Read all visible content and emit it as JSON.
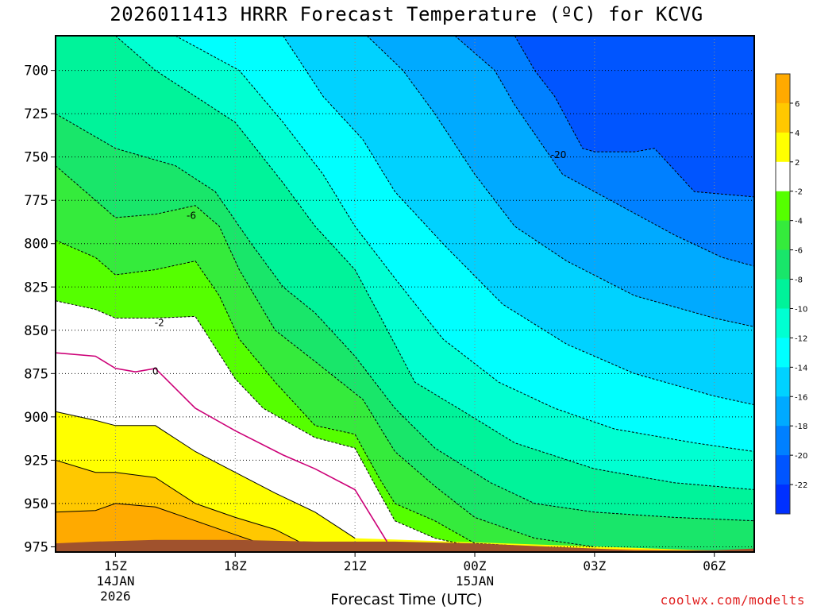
{
  "chart_data": {
    "type": "contour",
    "title": "2026011413 HRRR Forecast Temperature (ºC) for KCVG",
    "xlabel": "Forecast Time (UTC)",
    "credit": "coolwx.com/modelts",
    "y_axis": {
      "quantity": "pressure (hPa)",
      "reversed": true,
      "range": [
        680,
        978
      ],
      "ticks": [
        "700",
        "725",
        "750",
        "775",
        "800",
        "825",
        "850",
        "875",
        "900",
        "925",
        "950",
        "975"
      ]
    },
    "x_axis": {
      "range_hours": [
        13.5,
        31
      ],
      "ticks": [
        {
          "hour": 15,
          "lines": [
            "15Z",
            "14JAN",
            "2026"
          ]
        },
        {
          "hour": 18,
          "lines": [
            "18Z"
          ]
        },
        {
          "hour": 21,
          "lines": [
            "21Z"
          ]
        },
        {
          "hour": 24,
          "lines": [
            "00Z",
            "15JAN"
          ]
        },
        {
          "hour": 27,
          "lines": [
            "03Z"
          ]
        },
        {
          "hour": 30,
          "lines": [
            "06Z"
          ]
        }
      ]
    },
    "grid": true,
    "contour_levels": [
      -22,
      -20,
      -18,
      -16,
      -14,
      -12,
      -10,
      -8,
      -6,
      -4,
      -2,
      0,
      2,
      4,
      6
    ],
    "colorbar": {
      "position": "right",
      "ticks": [
        "6",
        "4",
        "2",
        "-2",
        "-4",
        "-6",
        "-8",
        "-10",
        "-12",
        "-14",
        "-16",
        "-18",
        "-20",
        "-22"
      ],
      "bands": [
        {
          "range": [
            6,
            8
          ],
          "color": "#ffaa00"
        },
        {
          "range": [
            4,
            6
          ],
          "color": "#ffc800"
        },
        {
          "range": [
            2,
            4
          ],
          "color": "#ffff00"
        },
        {
          "range": [
            -2,
            2
          ],
          "color": "#ffffff"
        },
        {
          "range": [
            -4,
            -2
          ],
          "color": "#55ff00"
        },
        {
          "range": [
            -6,
            -4
          ],
          "color": "#35eb3c"
        },
        {
          "range": [
            -8,
            -6
          ],
          "color": "#19e66a"
        },
        {
          "range": [
            -10,
            -8
          ],
          "color": "#00f39a"
        },
        {
          "range": [
            -12,
            -10
          ],
          "color": "#00ffd2"
        },
        {
          "range": [
            -14,
            -12
          ],
          "color": "#00ffff"
        },
        {
          "range": [
            -16,
            -14
          ],
          "color": "#00d2ff"
        },
        {
          "range": [
            -18,
            -16
          ],
          "color": "#00aaff"
        },
        {
          "range": [
            -20,
            -18
          ],
          "color": "#0080ff"
        },
        {
          "range": [
            -22,
            -20
          ],
          "color": "#0055ff"
        },
        {
          "range": [
            -24,
            -22
          ],
          "color": "#0030ff"
        }
      ]
    },
    "contour_labels": [
      {
        "text": "-20",
        "hour": 26.1,
        "pressure": 749
      },
      {
        "text": "-6",
        "hour": 16.9,
        "pressure": 784
      },
      {
        "text": "-2",
        "hour": 16.1,
        "pressure": 846
      },
      {
        "text": "0",
        "hour": 16.0,
        "pressure": 874
      }
    ],
    "isotherms": [
      {
        "level": -20,
        "points": [
          [
            25.0,
            680
          ],
          [
            25.5,
            700
          ],
          [
            26.0,
            715
          ],
          [
            26.7,
            745
          ],
          [
            27.0,
            747
          ],
          [
            28.0,
            747
          ],
          [
            28.5,
            745
          ],
          [
            29.5,
            770
          ],
          [
            31.0,
            773
          ]
        ]
      },
      {
        "level": -18,
        "points": [
          [
            23.5,
            680
          ],
          [
            24.5,
            700
          ],
          [
            25.0,
            720
          ],
          [
            26.2,
            760
          ],
          [
            27.8,
            780
          ],
          [
            29.0,
            795
          ],
          [
            30.2,
            808
          ],
          [
            31.0,
            813
          ]
        ]
      },
      {
        "level": -16,
        "points": [
          [
            21.3,
            680
          ],
          [
            22.2,
            700
          ],
          [
            23.0,
            725
          ],
          [
            24.0,
            760
          ],
          [
            25.0,
            790
          ],
          [
            26.3,
            810
          ],
          [
            28.0,
            830
          ],
          [
            30.0,
            843
          ],
          [
            31.0,
            848
          ]
        ]
      },
      {
        "level": -14,
        "points": [
          [
            19.2,
            680
          ],
          [
            20.2,
            715
          ],
          [
            21.2,
            740
          ],
          [
            22.0,
            770
          ],
          [
            23.2,
            800
          ],
          [
            24.7,
            835
          ],
          [
            26.3,
            858
          ],
          [
            28.0,
            875
          ],
          [
            30.0,
            888
          ],
          [
            31.0,
            893
          ]
        ]
      },
      {
        "level": -12,
        "points": [
          [
            16.5,
            680
          ],
          [
            18.1,
            700
          ],
          [
            19.2,
            730
          ],
          [
            20.2,
            760
          ],
          [
            21.0,
            790
          ],
          [
            22.0,
            820
          ],
          [
            23.2,
            855
          ],
          [
            24.6,
            880
          ],
          [
            26.0,
            895
          ],
          [
            27.5,
            907
          ],
          [
            29.5,
            915
          ],
          [
            31.0,
            920
          ]
        ]
      },
      {
        "level": -10,
        "points": [
          [
            15.0,
            680
          ],
          [
            16.0,
            700
          ],
          [
            18.0,
            730
          ],
          [
            19.2,
            765
          ],
          [
            20.0,
            790
          ],
          [
            21.0,
            815
          ],
          [
            21.7,
            845
          ],
          [
            22.5,
            880
          ],
          [
            23.8,
            898
          ],
          [
            25.0,
            915
          ],
          [
            27.0,
            930
          ],
          [
            29.0,
            938
          ],
          [
            31.0,
            942
          ]
        ]
      },
      {
        "level": -8,
        "points": [
          [
            13.5,
            725
          ],
          [
            15.0,
            745
          ],
          [
            16.5,
            755
          ],
          [
            17.5,
            770
          ],
          [
            18.4,
            800
          ],
          [
            19.2,
            825
          ],
          [
            20.0,
            840
          ],
          [
            21.0,
            865
          ],
          [
            22.0,
            895
          ],
          [
            23.0,
            918
          ],
          [
            24.4,
            938
          ],
          [
            25.5,
            950
          ],
          [
            27.0,
            955
          ],
          [
            29.0,
            958
          ],
          [
            31.0,
            960
          ]
        ]
      },
      {
        "level": -6,
        "points": [
          [
            13.5,
            755
          ],
          [
            14.5,
            775
          ],
          [
            15.0,
            785
          ],
          [
            16.0,
            783
          ],
          [
            17.0,
            778
          ],
          [
            17.6,
            790
          ],
          [
            18.1,
            815
          ],
          [
            19.0,
            850
          ],
          [
            20.0,
            868
          ],
          [
            21.2,
            890
          ],
          [
            22.0,
            920
          ],
          [
            23.0,
            940
          ],
          [
            24.0,
            958
          ],
          [
            25.5,
            970
          ],
          [
            27.0,
            975
          ]
        ]
      },
      {
        "level": -4,
        "points": [
          [
            13.5,
            798
          ],
          [
            14.5,
            808
          ],
          [
            15.0,
            818
          ],
          [
            16.0,
            815
          ],
          [
            17.0,
            810
          ],
          [
            17.6,
            830
          ],
          [
            18.1,
            855
          ],
          [
            19.0,
            880
          ],
          [
            20.0,
            905
          ],
          [
            21.0,
            910
          ],
          [
            21.6,
            935
          ],
          [
            22.0,
            950
          ],
          [
            23.0,
            960
          ],
          [
            24.0,
            973
          ],
          [
            25.5,
            975
          ]
        ]
      },
      {
        "level": -2,
        "points": [
          [
            13.5,
            833
          ],
          [
            14.5,
            838
          ],
          [
            15.0,
            843
          ],
          [
            16.0,
            843
          ],
          [
            17.0,
            842
          ],
          [
            18.0,
            878
          ],
          [
            18.7,
            895
          ],
          [
            20.0,
            912
          ],
          [
            21.0,
            918
          ],
          [
            21.4,
            935
          ],
          [
            22.0,
            960
          ],
          [
            23.0,
            970
          ],
          [
            24.0,
            975
          ]
        ]
      },
      {
        "level": 0,
        "points": [
          [
            13.5,
            863
          ],
          [
            14.5,
            865
          ],
          [
            15.0,
            872
          ],
          [
            15.5,
            874
          ],
          [
            16.0,
            872
          ],
          [
            17.0,
            895
          ],
          [
            18.0,
            908
          ],
          [
            19.2,
            922
          ],
          [
            20.0,
            930
          ],
          [
            21.0,
            942
          ],
          [
            21.8,
            972
          ]
        ]
      },
      {
        "level": 2,
        "points": [
          [
            13.5,
            897
          ],
          [
            14.5,
            902
          ],
          [
            15.0,
            905
          ],
          [
            16.0,
            905
          ],
          [
            17.0,
            920
          ],
          [
            18.0,
            932
          ],
          [
            19.0,
            944
          ],
          [
            20.0,
            955
          ],
          [
            21.0,
            970
          ]
        ]
      },
      {
        "level": 4,
        "points": [
          [
            13.5,
            925
          ],
          [
            14.5,
            932
          ],
          [
            15.0,
            932
          ],
          [
            16.0,
            935
          ],
          [
            17.0,
            950
          ],
          [
            18.0,
            958
          ],
          [
            19.0,
            965
          ],
          [
            19.6,
            972
          ]
        ]
      },
      {
        "level": 6,
        "points": [
          [
            13.5,
            955
          ],
          [
            14.5,
            954
          ],
          [
            15.0,
            950
          ],
          [
            16.0,
            952
          ],
          [
            17.0,
            960
          ],
          [
            18.0,
            968
          ],
          [
            18.5,
            972
          ]
        ]
      }
    ],
    "terrain_surface": [
      [
        13.5,
        973
      ],
      [
        14.5,
        972
      ],
      [
        16.0,
        971
      ],
      [
        18.0,
        971
      ],
      [
        20.0,
        972
      ],
      [
        22.0,
        972
      ],
      [
        24.0,
        973
      ],
      [
        26.0,
        975
      ],
      [
        28.0,
        977
      ],
      [
        30.0,
        977
      ],
      [
        31.0,
        976
      ]
    ]
  }
}
